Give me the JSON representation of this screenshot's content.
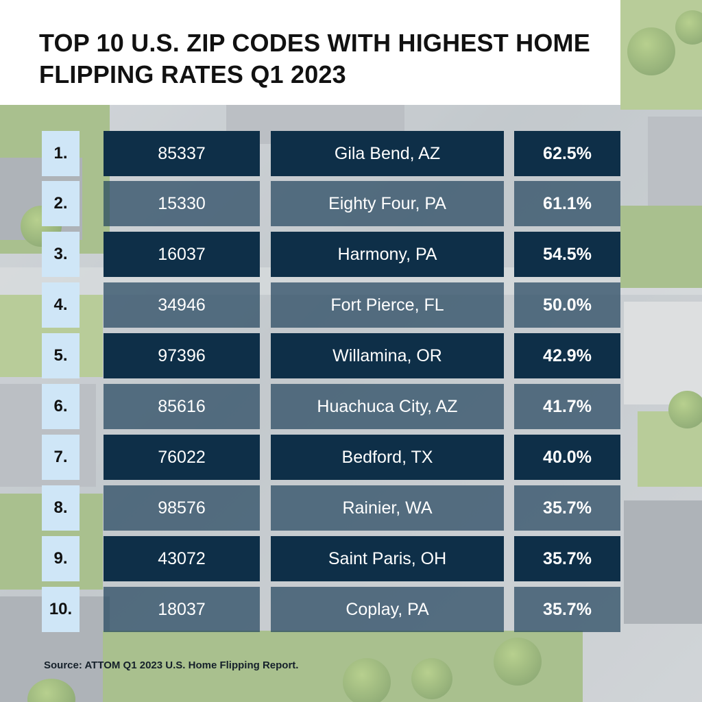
{
  "title": "TOP 10 U.S. ZIP CODES WITH HIGHEST HOME FLIPPING RATES Q1 2023",
  "rows": [
    {
      "rank": "1.",
      "zip": "85337",
      "city": "Gila Bend, AZ",
      "rate": "62.5%"
    },
    {
      "rank": "2.",
      "zip": "15330",
      "city": "Eighty Four, PA",
      "rate": "61.1%"
    },
    {
      "rank": "3.",
      "zip": "16037",
      "city": "Harmony, PA",
      "rate": "54.5%"
    },
    {
      "rank": "4.",
      "zip": "34946",
      "city": "Fort Pierce, FL",
      "rate": "50.0%"
    },
    {
      "rank": "5.",
      "zip": "97396",
      "city": "Willamina, OR",
      "rate": "42.9%"
    },
    {
      "rank": "6.",
      "zip": "85616",
      "city": "Huachuca City, AZ",
      "rate": "41.7%"
    },
    {
      "rank": "7.",
      "zip": "76022",
      "city": "Bedford, TX",
      "rate": "40.0%"
    },
    {
      "rank": "8.",
      "zip": "98576",
      "city": "Rainier, WA",
      "rate": "35.7%"
    },
    {
      "rank": "9.",
      "zip": "43072",
      "city": "Saint Paris, OH",
      "rate": "35.7%"
    },
    {
      "rank": "10.",
      "zip": "18037",
      "city": "Coplay, PA",
      "rate": "35.7%"
    }
  ],
  "source": "Source: ATTOM Q1 2023 U.S. Home Flipping Report.",
  "colors": {
    "dark_cell": "#0e2f48",
    "light_cell": "#264660",
    "rank_cell": "#cfe6f7",
    "title_text": "#111111"
  }
}
